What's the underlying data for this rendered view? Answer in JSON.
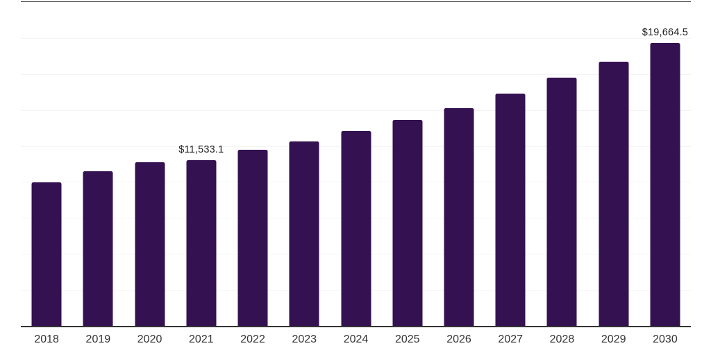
{
  "chart_data": {
    "type": "bar",
    "title": "",
    "xlabel": "",
    "ylabel": "",
    "categories": [
      "2018",
      "2019",
      "2020",
      "2021",
      "2022",
      "2023",
      "2024",
      "2025",
      "2026",
      "2027",
      "2028",
      "2029",
      "2030"
    ],
    "values": [
      9950,
      10740,
      11350,
      11533.1,
      12220,
      12820,
      13560,
      14310,
      15150,
      16140,
      17230,
      18380,
      19664.5
    ],
    "data_labels": [
      "",
      "",
      "",
      "$11,533.1",
      "",
      "",
      "",
      "",
      "",
      "",
      "",
      "",
      "$19,664.5"
    ],
    "ylim": [
      0,
      22500
    ],
    "gridline_interval": 2500,
    "grid": "horizontal-light",
    "legend": "none",
    "colors": {
      "bar": "#341151",
      "axis_line": "#333333",
      "gridline": "#f4f4f4",
      "data_label": "#212121",
      "tick_label": "#333333",
      "background": "#ffffff"
    }
  }
}
